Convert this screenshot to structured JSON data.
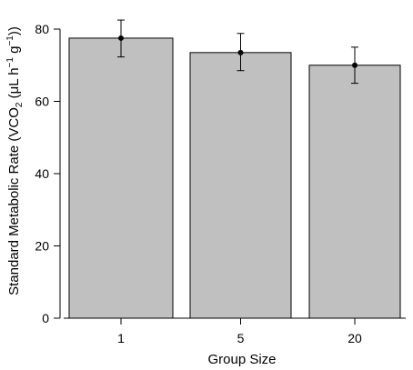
{
  "chart_data": {
    "type": "bar",
    "categories": [
      "1",
      "5",
      "20"
    ],
    "values": [
      77.5,
      73.5,
      70.0
    ],
    "points": [
      77.5,
      73.5,
      70.0
    ],
    "error_bars": [
      {
        "lower": 72.3,
        "upper": 82.5
      },
      {
        "lower": 68.5,
        "upper": 78.8
      },
      {
        "lower": 65.0,
        "upper": 75.0
      }
    ],
    "xlabel": "Group Size",
    "ylabel": {
      "prefix": "Standard Metabolic Rate (VCO",
      "sub2": "2",
      "mid": " (μL h",
      "sup1": "−1",
      "g": " g",
      "sup2": "−1",
      "suffix": "))"
    },
    "ylim": [
      0,
      80
    ],
    "yticks": [
      0,
      20,
      40,
      60,
      80
    ],
    "grid": false,
    "colors": {
      "bar_fill": "#c0c0c0",
      "bar_stroke": "#000000",
      "axis": "#000000",
      "point": "#000000"
    }
  }
}
